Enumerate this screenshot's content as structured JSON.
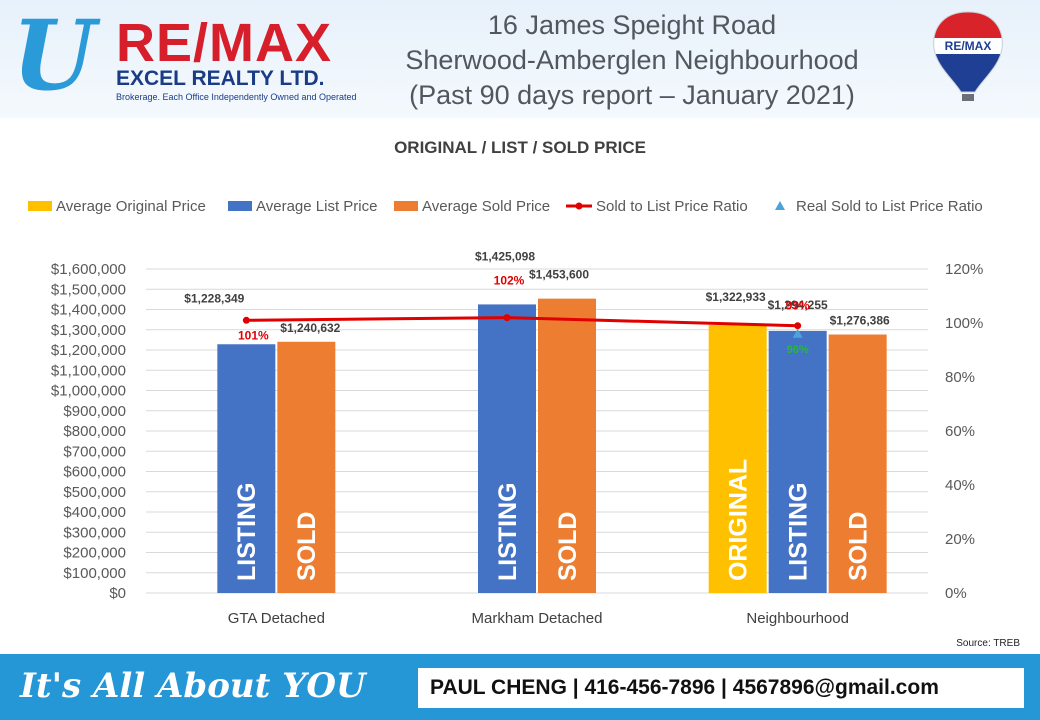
{
  "header": {
    "logo_u": "U",
    "logo_remax": "RE/MAX",
    "logo_excel": "EXCEL REALTY LTD.",
    "logo_broker": "Brokerage. Each Office Independently Owned and Operated",
    "title_line1": "16 James Speight Road",
    "title_line2": "Sherwood-Amberglen Neighbourhood",
    "title_line3": "(Past 90 days report – January 2021)",
    "balloon_label": "RE/MAX"
  },
  "footer": {
    "slogan": "It's All About YOU",
    "contact": "PAUL CHENG | 416-456-7896 | 4567896@gmail.com"
  },
  "source": "Source: TREB",
  "colors": {
    "original": "#ffc000",
    "list": "#4472c4",
    "sold": "#ed7d31",
    "ratio_line": "#e00000",
    "real_ratio": "#4ba3d9",
    "real_ratio_label": "#22bb33"
  },
  "chart_data": {
    "type": "bar",
    "title": "ORIGINAL / LIST / SOLD PRICE",
    "categories": [
      "GTA Detached",
      "Markham Detached",
      "Neighbourhood"
    ],
    "ylim": [
      0,
      1600000
    ],
    "y_ticks": [
      "$0",
      "$100,000",
      "$200,000",
      "$300,000",
      "$400,000",
      "$500,000",
      "$600,000",
      "$700,000",
      "$800,000",
      "$900,000",
      "$1,000,000",
      "$1,100,000",
      "$1,200,000",
      "$1,300,000",
      "$1,400,000",
      "$1,500,000",
      "$1,600,000"
    ],
    "y2lim": [
      0,
      120
    ],
    "y2_ticks": [
      "0%",
      "20%",
      "40%",
      "60%",
      "80%",
      "100%",
      "120%"
    ],
    "legend_position": "top",
    "grid": true,
    "series": [
      {
        "name": "Average Original Price",
        "values": [
          null,
          null,
          1322933
        ],
        "labels": [
          null,
          null,
          "$1,322,933"
        ],
        "bar_text": [
          null,
          null,
          "ORIGINAL"
        ]
      },
      {
        "name": "Average List Price",
        "values": [
          1228349,
          1425098,
          1294255
        ],
        "labels": [
          "$1,228,349",
          "$1,425,098",
          "$1,294,255"
        ],
        "bar_text": [
          "LISTING",
          "LISTING",
          "LISTING"
        ]
      },
      {
        "name": "Average Sold Price",
        "values": [
          1240632,
          1453600,
          1276386
        ],
        "labels": [
          "$1,240,632",
          "$1,453,600",
          "$1,276,386"
        ],
        "bar_text": [
          "SOLD",
          "SOLD",
          "SOLD"
        ]
      }
    ],
    "ratio_series": [
      {
        "name": "Sold to List Price Ratio",
        "type": "line",
        "values": [
          101,
          102,
          99
        ],
        "labels": [
          "101%",
          "102%",
          "99%"
        ]
      },
      {
        "name": "Real Sold to List Price Ratio",
        "type": "scatter",
        "values": [
          null,
          null,
          96
        ],
        "labels": [
          null,
          null,
          "96%"
        ]
      }
    ]
  }
}
